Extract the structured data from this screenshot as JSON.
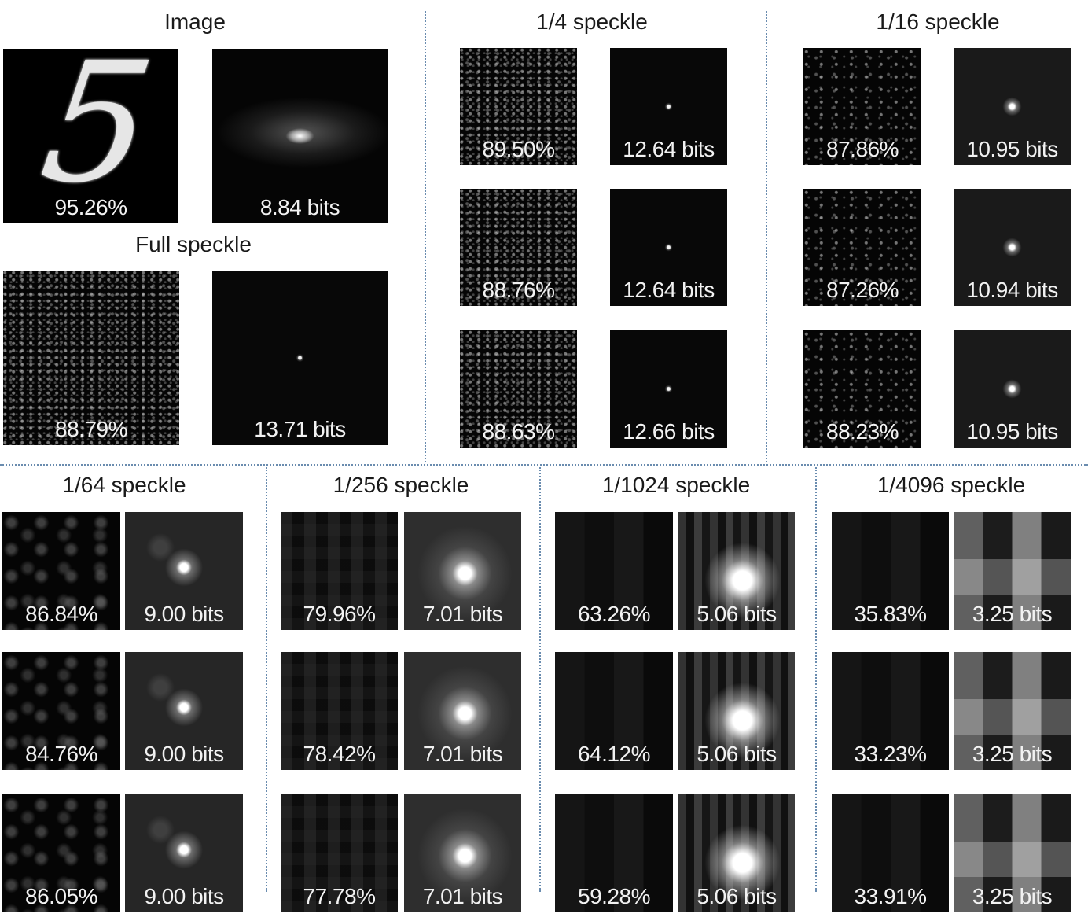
{
  "sections": {
    "image": "Image",
    "full": "Full speckle",
    "q4": "1/4 speckle",
    "q16": "1/16 speckle",
    "q64": "1/64 speckle",
    "q256": "1/256 speckle",
    "q1024": "1/1024 speckle",
    "q4096": "1/4096 speckle"
  },
  "labels": {
    "image": [
      "95.26%",
      "8.84 bits"
    ],
    "full": [
      "88.79%",
      "13.71 bits"
    ],
    "q4": [
      [
        "89.50%",
        "12.64 bits"
      ],
      [
        "88.76%",
        "12.64 bits"
      ],
      [
        "88.63%",
        "12.66 bits"
      ]
    ],
    "q16": [
      [
        "87.86%",
        "10.95 bits"
      ],
      [
        "87.26%",
        "10.94 bits"
      ],
      [
        "88.23%",
        "10.95 bits"
      ]
    ],
    "q64": [
      [
        "86.84%",
        "9.00 bits"
      ],
      [
        "84.76%",
        "9.00 bits"
      ],
      [
        "86.05%",
        "9.00 bits"
      ]
    ],
    "q256": [
      [
        "79.96%",
        "7.01 bits"
      ],
      [
        "78.42%",
        "7.01 bits"
      ],
      [
        "77.78%",
        "7.01 bits"
      ]
    ],
    "q1024": [
      [
        "63.26%",
        "5.06 bits"
      ],
      [
        "64.12%",
        "5.06 bits"
      ],
      [
        "59.28%",
        "5.06 bits"
      ]
    ],
    "q4096": [
      [
        "35.83%",
        "3.25 bits"
      ],
      [
        "33.23%",
        "3.25 bits"
      ],
      [
        "33.91%",
        "3.25 bits"
      ]
    ]
  },
  "digit": "5"
}
